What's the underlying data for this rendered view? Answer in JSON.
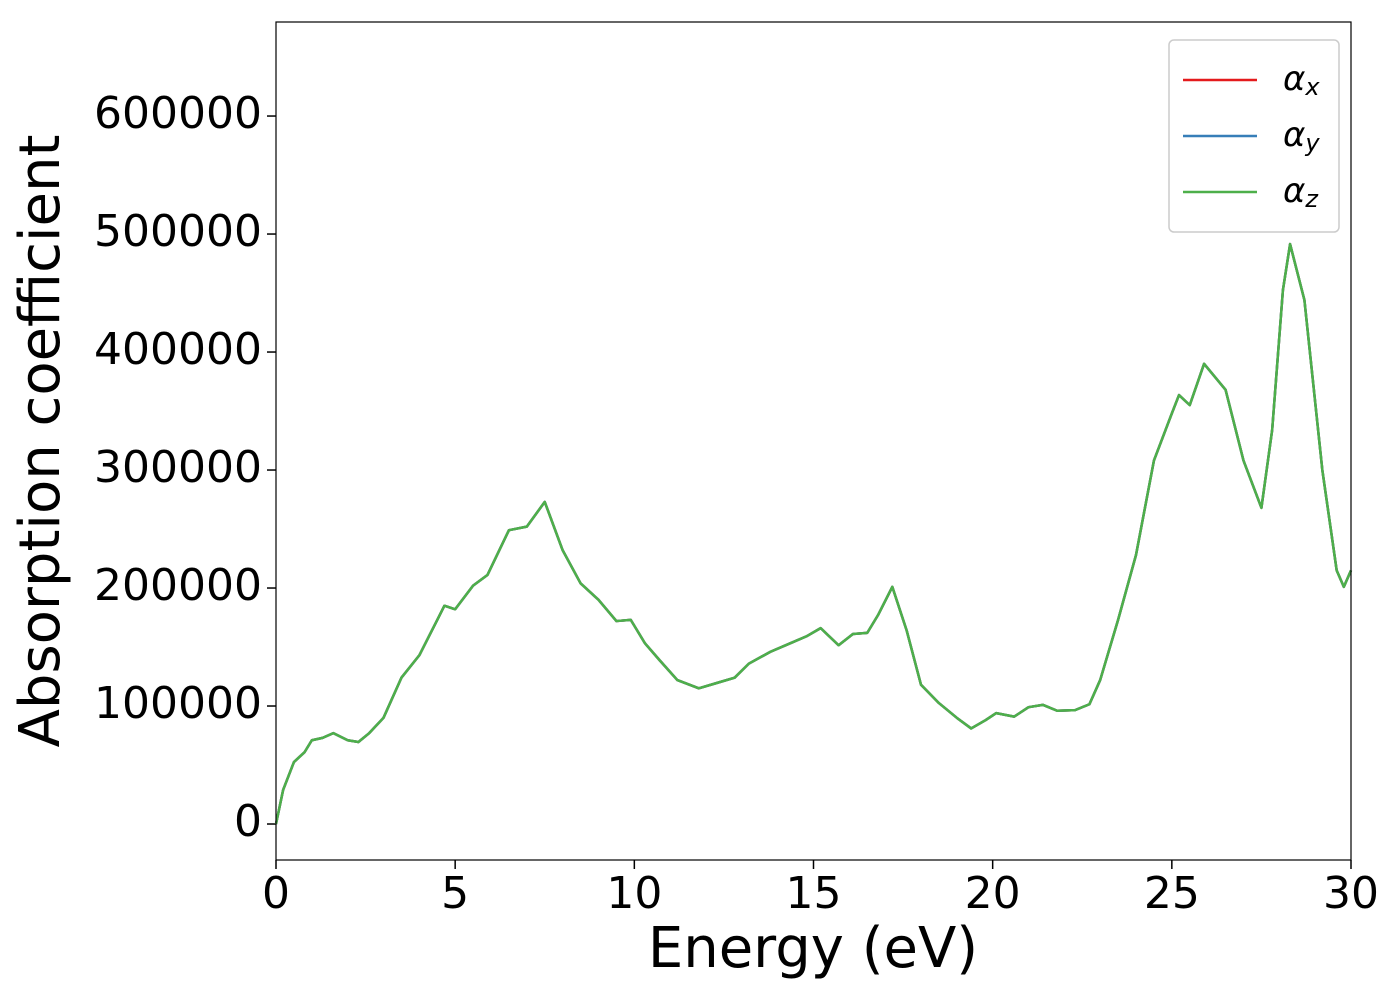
{
  "chart_data": {
    "type": "line",
    "xlabel": "Energy (eV)",
    "ylabel": "Absorption coefficient",
    "x": [
      0,
      0.2,
      0.5,
      0.8,
      1.0,
      1.3,
      1.6,
      2.0,
      2.3,
      2.6,
      3.0,
      3.5,
      4.0,
      4.5,
      4.7,
      5.0,
      5.5,
      5.9,
      6.5,
      7.0,
      7.5,
      8.0,
      8.5,
      9.0,
      9.5,
      9.9,
      10.3,
      10.7,
      11.2,
      11.8,
      12.3,
      12.8,
      13.2,
      13.8,
      14.3,
      14.8,
      15.2,
      15.7,
      16.1,
      16.5,
      16.8,
      17.2,
      17.6,
      18.0,
      18.5,
      19.0,
      19.4,
      19.8,
      20.1,
      20.6,
      21.0,
      21.4,
      21.8,
      22.3,
      22.7,
      23.0,
      23.5,
      24.0,
      24.5,
      25.0,
      25.2,
      25.5,
      25.9,
      26.5,
      27.0,
      27.5,
      27.8,
      28.1,
      28.3,
      28.7,
      29.2,
      29.6,
      29.8,
      30.0
    ],
    "series": [
      {
        "name": "αx",
        "color": "#e41a1c",
        "values": [
          0,
          29000,
          52500,
          61000,
          71000,
          73000,
          77000,
          71000,
          69500,
          77000,
          90000,
          124000,
          143000,
          173000,
          185000,
          182000,
          202000,
          211000,
          249000,
          252000,
          273000,
          232000,
          204000,
          190000,
          172000,
          173000,
          153000,
          139000,
          122000,
          115000,
          119500,
          124000,
          136000,
          146000,
          152500,
          159000,
          166000,
          151500,
          161000,
          162000,
          177000,
          201000,
          164000,
          118000,
          102500,
          90000,
          81000,
          88000,
          94000,
          91000,
          99000,
          101000,
          96000,
          96500,
          101500,
          122000,
          173000,
          228000,
          308000,
          348000,
          363500,
          355000,
          390000,
          368000,
          308000,
          268000,
          334000,
          452500,
          491500,
          444000,
          300000,
          215000,
          201000,
          215000
        ]
      },
      {
        "name": "αy",
        "color": "#377eb8",
        "values": [
          0,
          29000,
          52500,
          61000,
          71000,
          73000,
          77000,
          71000,
          69500,
          77000,
          90000,
          124000,
          143000,
          173000,
          185000,
          182000,
          202000,
          211000,
          249000,
          252000,
          273000,
          232000,
          204000,
          190000,
          172000,
          173000,
          153000,
          139000,
          122000,
          115000,
          119500,
          124000,
          136000,
          146000,
          152500,
          159000,
          166000,
          151500,
          161000,
          162000,
          177000,
          201000,
          164000,
          118000,
          102500,
          90000,
          81000,
          88000,
          94000,
          91000,
          99000,
          101000,
          96000,
          96500,
          101500,
          122000,
          173000,
          228000,
          308000,
          348000,
          363500,
          355000,
          390000,
          368000,
          308000,
          268000,
          334000,
          452500,
          491500,
          444000,
          300000,
          215000,
          201000,
          215000
        ]
      },
      {
        "name": "αz",
        "color": "#4daf4a",
        "values": [
          0,
          29000,
          52500,
          61000,
          71000,
          73000,
          77000,
          71000,
          69500,
          77000,
          90000,
          124000,
          143000,
          173000,
          185000,
          182000,
          202000,
          211000,
          249000,
          252000,
          273000,
          232000,
          204000,
          190000,
          172000,
          173000,
          153000,
          139000,
          122000,
          115000,
          119500,
          124000,
          136000,
          146000,
          152500,
          159000,
          166000,
          151500,
          161000,
          162000,
          177000,
          201000,
          164000,
          118000,
          102500,
          90000,
          81000,
          88000,
          94000,
          91000,
          99000,
          101000,
          96000,
          96500,
          101500,
          122000,
          173000,
          228000,
          308000,
          348000,
          363500,
          355000,
          390000,
          368000,
          308000,
          268000,
          334000,
          452500,
          491500,
          444000,
          300000,
          215000,
          201000,
          215000
        ]
      }
    ],
    "xlim": [
      0,
      30
    ],
    "xticks": [
      0,
      5,
      10,
      15,
      20,
      25,
      30
    ],
    "ylim": [
      -30500,
      679700
    ],
    "yticks": [
      0,
      100000,
      200000,
      300000,
      400000,
      500000,
      600000
    ],
    "legend": "upper right",
    "grid": false
  }
}
